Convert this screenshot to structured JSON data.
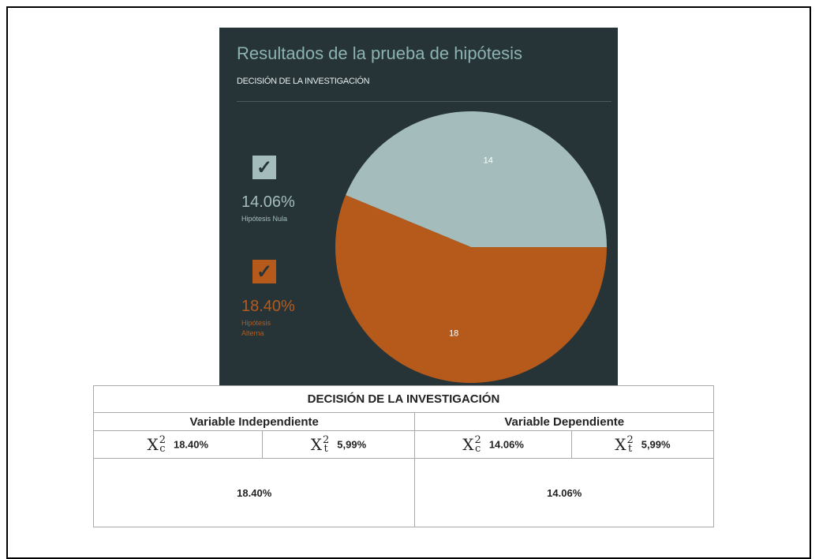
{
  "chart_data": {
    "type": "pie",
    "title": "Resultados de la prueba de hipótesis",
    "subtitle": "DECISIÓN DE LA INVESTIGACIÓN",
    "categories": [
      "Hipótesis Nula",
      "Hipótesis Alterna"
    ],
    "values": [
      14,
      18
    ],
    "colors": [
      "#a4bdbc",
      "#b65a1c"
    ],
    "legend_values": [
      "14.06%",
      "18.40%"
    ],
    "start_angle": "east",
    "direction": "counterclockwise"
  },
  "table": {
    "title": "DECISIÓN DE LA INVESTIGACIÓN",
    "headers": [
      "Variable Independiente",
      "Variable Dependiente"
    ],
    "symbols": [
      {
        "base": "X",
        "sup": "2",
        "sub": "c"
      },
      {
        "base": "X",
        "sup": "2",
        "sub": "t"
      }
    ],
    "row": [
      "18.40%",
      "5,99%",
      "14.06%",
      "5,99%"
    ],
    "results": [
      "18.40%",
      "14.06%"
    ]
  }
}
